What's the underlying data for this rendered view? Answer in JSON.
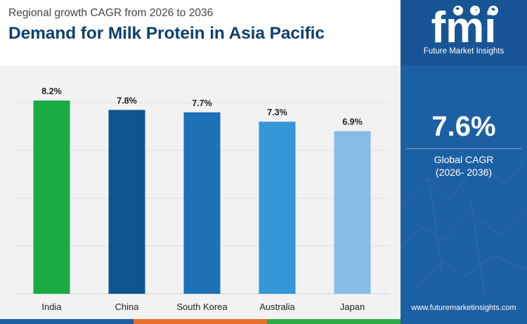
{
  "header": {
    "subtitle": "Regional growth CAGR from 2026 to 2036",
    "title": "Demand for Milk Protein in Asia Pacific"
  },
  "sidebar": {
    "logo_text": "fmi",
    "logo_tagline": "Future Market Insights",
    "kpi_value": "7.6%",
    "kpi_label": "Global CAGR",
    "kpi_period": "(2026- 2036)",
    "website": "www.futuremarketinsights.com"
  },
  "colors": {
    "title": "#0d3f6e",
    "sidebar": "#1d5fa3",
    "plot_background": "#f2f2f2",
    "footer": [
      "#1d5fa3",
      "#e8702a",
      "#2eaa46"
    ]
  },
  "chart_data": {
    "type": "bar",
    "title": "Demand for Milk Protein in Asia Pacific",
    "subtitle": "Regional growth CAGR from 2026 to 2036",
    "categories": [
      "India",
      "China",
      "South Korea",
      "Australia",
      "Japan"
    ],
    "values": [
      8.2,
      7.8,
      7.7,
      7.3,
      6.9
    ],
    "value_labels": [
      "8.2%",
      "7.8%",
      "7.7%",
      "7.3%",
      "6.9%"
    ],
    "bar_colors": [
      "#1aab43",
      "#0e5590",
      "#1f71b5",
      "#3596d8",
      "#86bde6"
    ],
    "ylim": [
      0,
      8.2
    ],
    "grid": true,
    "y_axis_labels_shown": false
  }
}
